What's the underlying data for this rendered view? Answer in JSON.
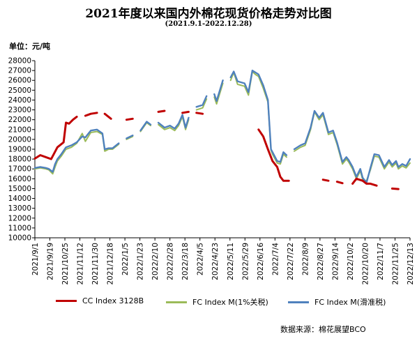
{
  "header": {
    "title": "2021年度以来国内外棉花现货价格走势对比图",
    "subtitle": "(2021.9.1-2022.12.28)",
    "unit": "单位：元/吨"
  },
  "footer": {
    "source": "数据来源：棉花展望BCO"
  },
  "colors": {
    "cc": "#c00000",
    "fc1": "#9bbb59",
    "fcs": "#4f81bd"
  },
  "chart_data": {
    "type": "line",
    "title": "2021年度以来国内外棉花现货价格走势对比图",
    "ylabel": "单位：元/吨",
    "ylim": [
      10000,
      28000
    ],
    "yticks": [
      "10000",
      "11000",
      "12000",
      "13000",
      "14000",
      "15000",
      "16000",
      "17000",
      "18000",
      "19000",
      "20000",
      "21000",
      "22000",
      "23000",
      "24000",
      "25000",
      "26000",
      "27000",
      "28000"
    ],
    "xlim": [
      "2021-09-01",
      "2022-12-28"
    ],
    "xticks": [
      "2021/9/1",
      "2021/9/19",
      "2021/10/25",
      "2021/11/12",
      "2021/11/30",
      "2021/12/18",
      "2022/1/5",
      "2022/1/23",
      "2022/2/10",
      "2022/2/28",
      "2022/3/18",
      "2022/4/5",
      "2022/4/23",
      "2022/5/11",
      "2022/5/29",
      "2022/6/16",
      "2022/7/4",
      "2022/7/22",
      "2022/8/9",
      "2022/8/27",
      "2022/9/14",
      "2022/10/2",
      "2022/10/20",
      "2022/11/7",
      "2022/11/25",
      "2022/12/13"
    ],
    "legend_position": "bottom",
    "grid": false,
    "series": [
      {
        "name": "CC Index 3128B",
        "color": "#c00000",
        "points": [
          [
            "2021-09-01",
            18050
          ],
          [
            "2021-09-08",
            18400
          ],
          [
            "2021-09-15",
            18200
          ],
          [
            "2021-09-22",
            18000
          ],
          [
            "2021-09-30",
            19200
          ],
          [
            "2021-10-08",
            19700
          ],
          [
            "2021-10-11",
            21700
          ],
          [
            "2021-10-15",
            21600
          ],
          [
            "2021-10-20",
            22000
          ],
          [
            "2021-10-25",
            22300
          ],
          [
            "2021-11-05",
            22400
          ],
          [
            "2021-11-12",
            22600
          ],
          [
            "2021-11-20",
            22700
          ],
          [
            "2021-11-30",
            22600
          ],
          [
            "2021-12-08",
            22100
          ],
          [
            "2021-12-18",
            22000
          ],
          [
            "2021-12-28",
            22000
          ],
          [
            "2022-01-05",
            22100
          ],
          [
            "2022-01-15",
            22500
          ],
          [
            "2022-01-28",
            22700
          ],
          [
            "2022-02-07",
            22800
          ],
          [
            "2022-02-15",
            22900
          ],
          [
            "2022-02-28",
            22800
          ],
          [
            "2022-03-10",
            22700
          ],
          [
            "2022-03-18",
            22800
          ],
          [
            "2022-03-28",
            22700
          ],
          [
            "2022-04-05",
            22600
          ],
          [
            "2022-04-15",
            22500
          ],
          [
            "2022-04-25",
            22400
          ],
          [
            "2022-05-05",
            22350
          ],
          [
            "2022-05-15",
            22200
          ],
          [
            "2022-05-25",
            21900
          ],
          [
            "2022-06-05",
            21400
          ],
          [
            "2022-06-16",
            21000
          ],
          [
            "2022-06-22",
            20300
          ],
          [
            "2022-06-28",
            19000
          ],
          [
            "2022-07-04",
            17800
          ],
          [
            "2022-07-10",
            17200
          ],
          [
            "2022-07-14",
            16200
          ],
          [
            "2022-07-18",
            15800
          ],
          [
            "2022-07-25",
            15800
          ],
          [
            "2022-08-05",
            15800
          ],
          [
            "2022-08-15",
            15900
          ],
          [
            "2022-08-27",
            16000
          ],
          [
            "2022-09-07",
            15900
          ],
          [
            "2022-09-14",
            15800
          ],
          [
            "2022-09-25",
            15700
          ],
          [
            "2022-10-02",
            15550
          ],
          [
            "2022-10-15",
            15500
          ],
          [
            "2022-10-20",
            16000
          ],
          [
            "2022-10-28",
            15800
          ],
          [
            "2022-11-02",
            15500
          ],
          [
            "2022-11-07",
            15500
          ],
          [
            "2022-11-15",
            15300
          ],
          [
            "2022-11-25",
            15100
          ],
          [
            "2022-12-05",
            15000
          ],
          [
            "2022-12-13",
            14950
          ],
          [
            "2022-12-28",
            15000
          ]
        ]
      },
      {
        "name": "FC Index M(1%关税)",
        "color": "#9bbb59",
        "points": [
          [
            "2021-09-01",
            17000
          ],
          [
            "2021-09-08",
            17100
          ],
          [
            "2021-09-15",
            17000
          ],
          [
            "2021-09-19",
            16900
          ],
          [
            "2021-09-24",
            16500
          ],
          [
            "2021-09-27",
            17200
          ],
          [
            "2021-09-30",
            17800
          ],
          [
            "2021-10-05",
            18300
          ],
          [
            "2021-10-11",
            19000
          ],
          [
            "2021-10-18",
            19200
          ],
          [
            "2021-10-25",
            19600
          ],
          [
            "2021-11-01",
            20600
          ],
          [
            "2021-11-05",
            19800
          ],
          [
            "2021-11-12",
            20700
          ],
          [
            "2021-11-20",
            20800
          ],
          [
            "2021-11-27",
            20500
          ],
          [
            "2021-11-30",
            18800
          ],
          [
            "2021-12-05",
            19000
          ],
          [
            "2021-12-10",
            19000
          ],
          [
            "2021-12-18",
            19500
          ],
          [
            "2021-12-28",
            20000
          ],
          [
            "2022-01-05",
            20300
          ],
          [
            "2022-01-15",
            20800
          ],
          [
            "2022-01-23",
            21700
          ],
          [
            "2022-01-28",
            21400
          ],
          [
            "2022-02-07",
            21500
          ],
          [
            "2022-02-15",
            21000
          ],
          [
            "2022-02-22",
            21200
          ],
          [
            "2022-02-28",
            20900
          ],
          [
            "2022-03-05",
            21400
          ],
          [
            "2022-03-10",
            22300
          ],
          [
            "2022-03-14",
            21000
          ],
          [
            "2022-03-18",
            22000
          ],
          [
            "2022-03-28",
            23000
          ],
          [
            "2022-04-05",
            23200
          ],
          [
            "2022-04-10",
            24100
          ],
          [
            "2022-04-20",
            24300
          ],
          [
            "2022-04-23",
            23600
          ],
          [
            "2022-05-01",
            25700
          ],
          [
            "2022-05-11",
            26000
          ],
          [
            "2022-05-15",
            26800
          ],
          [
            "2022-05-20",
            25600
          ],
          [
            "2022-05-29",
            25400
          ],
          [
            "2022-06-03",
            24500
          ],
          [
            "2022-06-08",
            26900
          ],
          [
            "2022-06-12",
            26600
          ],
          [
            "2022-06-16",
            26400
          ],
          [
            "2022-06-22",
            25200
          ],
          [
            "2022-06-28",
            23800
          ],
          [
            "2022-07-02",
            18900
          ],
          [
            "2022-07-04",
            18500
          ],
          [
            "2022-07-10",
            17600
          ],
          [
            "2022-07-14",
            17500
          ],
          [
            "2022-07-18",
            18500
          ],
          [
            "2022-07-22",
            18200
          ],
          [
            "2022-08-01",
            18800
          ],
          [
            "2022-08-09",
            19200
          ],
          [
            "2022-08-15",
            19400
          ],
          [
            "2022-08-22",
            21000
          ],
          [
            "2022-08-27",
            22800
          ],
          [
            "2022-09-02",
            22000
          ],
          [
            "2022-09-07",
            22500
          ],
          [
            "2022-09-14",
            20500
          ],
          [
            "2022-09-20",
            20700
          ],
          [
            "2022-09-25",
            19500
          ],
          [
            "2022-10-02",
            17500
          ],
          [
            "2022-10-07",
            18000
          ],
          [
            "2022-10-10",
            17700
          ],
          [
            "2022-10-15",
            17000
          ],
          [
            "2022-10-20",
            16000
          ],
          [
            "2022-10-25",
            16800
          ],
          [
            "2022-10-28",
            15900
          ],
          [
            "2022-11-02",
            15800
          ],
          [
            "2022-11-07",
            16900
          ],
          [
            "2022-11-12",
            18300
          ],
          [
            "2022-11-18",
            18200
          ],
          [
            "2022-11-25",
            17000
          ],
          [
            "2022-12-01",
            17700
          ],
          [
            "2022-12-05",
            17200
          ],
          [
            "2022-12-10",
            17600
          ],
          [
            "2022-12-13",
            17000
          ],
          [
            "2022-12-18",
            17300
          ],
          [
            "2022-12-23",
            17100
          ],
          [
            "2022-12-28",
            17600
          ]
        ]
      },
      {
        "name": "FC Index M(滑准税)",
        "color": "#4f81bd",
        "points": [
          [
            "2021-09-01",
            17100
          ],
          [
            "2021-09-08",
            17200
          ],
          [
            "2021-09-15",
            17100
          ],
          [
            "2021-09-19",
            17000
          ],
          [
            "2021-09-24",
            16700
          ],
          [
            "2021-09-27",
            17500
          ],
          [
            "2021-09-30",
            18000
          ],
          [
            "2021-10-05",
            18500
          ],
          [
            "2021-10-11",
            19200
          ],
          [
            "2021-10-18",
            19400
          ],
          [
            "2021-10-25",
            19700
          ],
          [
            "2021-11-01",
            20300
          ],
          [
            "2021-11-05",
            20200
          ],
          [
            "2021-11-12",
            20900
          ],
          [
            "2021-11-20",
            21000
          ],
          [
            "2021-11-27",
            20600
          ],
          [
            "2021-11-30",
            19000
          ],
          [
            "2021-12-05",
            19100
          ],
          [
            "2021-12-10",
            19100
          ],
          [
            "2021-12-18",
            19600
          ],
          [
            "2021-12-28",
            20100
          ],
          [
            "2022-01-05",
            20400
          ],
          [
            "2022-01-15",
            20900
          ],
          [
            "2022-01-23",
            21800
          ],
          [
            "2022-01-28",
            21500
          ],
          [
            "2022-02-07",
            21700
          ],
          [
            "2022-02-15",
            21200
          ],
          [
            "2022-02-22",
            21400
          ],
          [
            "2022-02-28",
            21100
          ],
          [
            "2022-03-05",
            21600
          ],
          [
            "2022-03-10",
            22500
          ],
          [
            "2022-03-14",
            21200
          ],
          [
            "2022-03-18",
            22200
          ],
          [
            "2022-03-28",
            23300
          ],
          [
            "2022-04-05",
            23500
          ],
          [
            "2022-04-10",
            24400
          ],
          [
            "2022-04-20",
            24600
          ],
          [
            "2022-04-23",
            23900
          ],
          [
            "2022-05-01",
            26000
          ],
          [
            "2022-05-11",
            26300
          ],
          [
            "2022-05-15",
            26900
          ],
          [
            "2022-05-20",
            25900
          ],
          [
            "2022-05-29",
            25700
          ],
          [
            "2022-06-03",
            24800
          ],
          [
            "2022-06-08",
            27000
          ],
          [
            "2022-06-12",
            26800
          ],
          [
            "2022-06-16",
            26600
          ],
          [
            "2022-06-22",
            25500
          ],
          [
            "2022-06-28",
            24000
          ],
          [
            "2022-07-02",
            19000
          ],
          [
            "2022-07-04",
            18700
          ],
          [
            "2022-07-10",
            17800
          ],
          [
            "2022-07-14",
            17700
          ],
          [
            "2022-07-18",
            18700
          ],
          [
            "2022-07-22",
            18400
          ],
          [
            "2022-08-01",
            19000
          ],
          [
            "2022-08-09",
            19400
          ],
          [
            "2022-08-15",
            19600
          ],
          [
            "2022-08-22",
            21200
          ],
          [
            "2022-08-27",
            22900
          ],
          [
            "2022-09-02",
            22200
          ],
          [
            "2022-09-07",
            22700
          ],
          [
            "2022-09-14",
            20700
          ],
          [
            "2022-09-20",
            20900
          ],
          [
            "2022-09-25",
            19700
          ],
          [
            "2022-10-02",
            17700
          ],
          [
            "2022-10-07",
            18200
          ],
          [
            "2022-10-10",
            17900
          ],
          [
            "2022-10-15",
            17200
          ],
          [
            "2022-10-20",
            16200
          ],
          [
            "2022-10-25",
            17000
          ],
          [
            "2022-10-28",
            16100
          ],
          [
            "2022-11-02",
            15600
          ],
          [
            "2022-11-07",
            17100
          ],
          [
            "2022-11-12",
            18500
          ],
          [
            "2022-11-18",
            18400
          ],
          [
            "2022-11-25",
            17200
          ],
          [
            "2022-12-01",
            17900
          ],
          [
            "2022-12-05",
            17400
          ],
          [
            "2022-12-10",
            17800
          ],
          [
            "2022-12-13",
            17200
          ],
          [
            "2022-12-18",
            17500
          ],
          [
            "2022-12-23",
            17300
          ],
          [
            "2022-12-28",
            18000
          ]
        ]
      }
    ]
  }
}
